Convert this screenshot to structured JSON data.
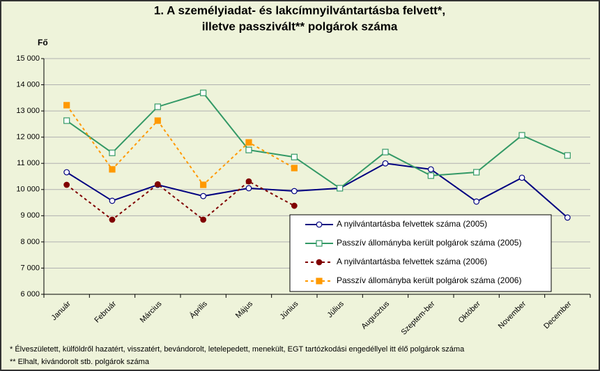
{
  "chart_data": {
    "type": "line",
    "title": [
      "1. A személyiadat- és lakcímnyilvántartásba felvett*,",
      "illetve passzivált** polgárok száma"
    ],
    "y_label": "Fő",
    "categories": [
      "Január",
      "Február",
      "Március",
      "Április",
      "Május",
      "Június",
      "Július",
      "Augusztus",
      "Szeptem-ber",
      "Október",
      "November",
      "December"
    ],
    "series": [
      {
        "name": "A nyilvántartásba felvettek száma (2005)",
        "color": "#000080",
        "line_style": "solid",
        "marker": "circle",
        "marker_filled": false,
        "values": [
          10660,
          9570,
          10180,
          9750,
          10050,
          9940,
          10050,
          11000,
          10770,
          9540,
          10450,
          8930
        ]
      },
      {
        "name": "Passzív állományba került polgárok száma (2005)",
        "color": "#339966",
        "line_style": "solid",
        "marker": "square",
        "marker_filled": false,
        "values": [
          12630,
          11400,
          13160,
          13690,
          11510,
          11240,
          10050,
          11430,
          10530,
          10660,
          12070,
          11300
        ]
      },
      {
        "name": "A nyilvántartásba felvettek száma (2006)",
        "color": "#800000",
        "line_style": "dashed",
        "marker": "circle",
        "marker_filled": true,
        "values": [
          10180,
          8850,
          10200,
          8850,
          10310,
          9380,
          null,
          null,
          null,
          null,
          null,
          null
        ]
      },
      {
        "name": "Passzív állományba került polgárok száma (2006)",
        "color": "#ff9900",
        "line_style": "dashed",
        "marker": "square",
        "marker_filled": true,
        "values": [
          13220,
          10770,
          12630,
          10180,
          11800,
          10820,
          null,
          null,
          null,
          null,
          null,
          null
        ]
      }
    ],
    "ylim": [
      6000,
      15000
    ],
    "yticks": [
      {
        "value": 6000,
        "label": "6 000"
      },
      {
        "value": 7000,
        "label": "7 000"
      },
      {
        "value": 8000,
        "label": "8 000"
      },
      {
        "value": 9000,
        "label": "9 000"
      },
      {
        "value": 10000,
        "label": "10 000"
      },
      {
        "value": 11000,
        "label": "11 000"
      },
      {
        "value": 12000,
        "label": "12 000"
      },
      {
        "value": 13000,
        "label": "13 000"
      },
      {
        "value": 14000,
        "label": "14 000"
      },
      {
        "value": 15000,
        "label": "15 000"
      }
    ],
    "grid": true,
    "legend": "lower right",
    "notes": [
      "* Élveszületett, külföldről hazatért, visszatért, bevándorolt, letelepedett, menekült, EGT tartózkodási engedéllyel itt élő  polgárok száma",
      "** Elhalt, kivándorolt stb. polgárok száma"
    ]
  }
}
